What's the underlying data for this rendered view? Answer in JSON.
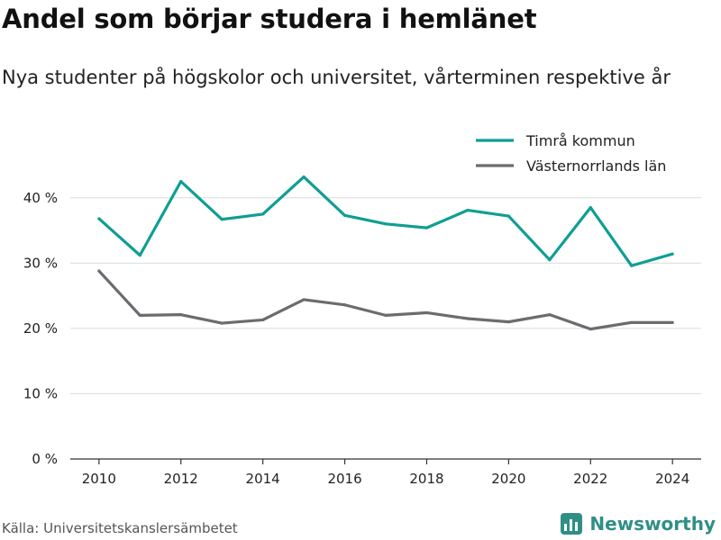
{
  "header": {
    "title": "Andel som börjar studera i hemlänet",
    "subtitle": "Nya studenter på högskolor och universitet, vårterminen respektive år"
  },
  "footer": {
    "source": "Källa: Universitetskanslersämbetet",
    "brand_name": "Newsworthy",
    "brand_icon": "newsworthy-logo-icon",
    "brand_color": "#2f8f86"
  },
  "chart_data": {
    "type": "line",
    "title": "Andel som börjar studera i hemlänet",
    "subtitle": "Nya studenter på högskolor och universitet, vårterminen respektive år",
    "xlabel": "",
    "ylabel": "",
    "x": [
      2010,
      2011,
      2012,
      2013,
      2014,
      2015,
      2016,
      2017,
      2018,
      2019,
      2020,
      2021,
      2022,
      2023,
      2024
    ],
    "xlim": [
      2009.3,
      2024.7
    ],
    "ylim": [
      0,
      43
    ],
    "grid": true,
    "legend_position": "top-right",
    "x_ticks": [
      2010,
      2012,
      2014,
      2016,
      2018,
      2020,
      2022,
      2024
    ],
    "x_tick_labels": [
      "2010",
      "2012",
      "2014",
      "2016",
      "2018",
      "2020",
      "2022",
      "2024"
    ],
    "y_ticks": [
      0,
      10,
      20,
      30,
      40
    ],
    "y_tick_labels": [
      "0 %",
      "10 %",
      "20 %",
      "30 %",
      "40 %"
    ],
    "series": [
      {
        "name": "Timrå kommun",
        "color": "#0f9e94",
        "values": [
          36.8,
          31.2,
          42.5,
          36.7,
          37.5,
          43.2,
          37.3,
          36.0,
          35.4,
          38.1,
          37.2,
          30.5,
          38.5,
          29.6,
          31.4
        ]
      },
      {
        "name": "Västernorrlands län",
        "color": "#6b6b70",
        "values": [
          28.8,
          22.0,
          22.1,
          20.8,
          21.3,
          24.4,
          23.6,
          22.0,
          22.4,
          21.5,
          21.0,
          22.1,
          19.9,
          20.9,
          20.9
        ]
      }
    ]
  }
}
